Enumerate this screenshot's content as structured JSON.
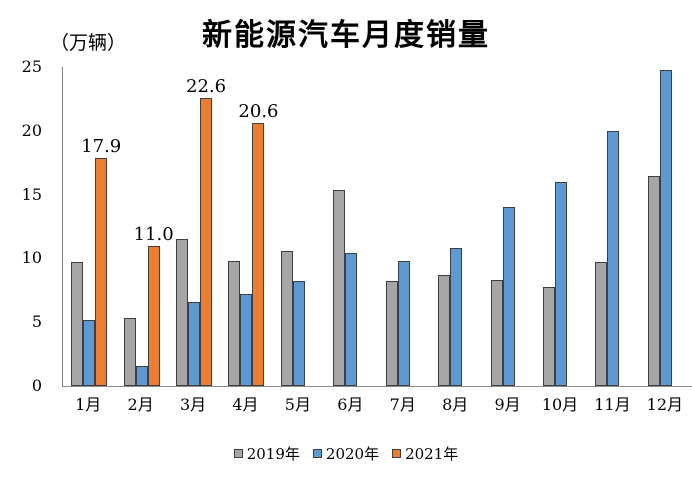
{
  "chart_data": {
    "type": "bar",
    "title": "新能源汽车月度销量",
    "ylabel": "（万辆）",
    "xlabel": "",
    "categories": [
      "1月",
      "2月",
      "3月",
      "4月",
      "5月",
      "6月",
      "7月",
      "8月",
      "9月",
      "10月",
      "11月",
      "12月"
    ],
    "series": [
      {
        "name": "2019年",
        "color": "#a6a6a6",
        "values": [
          9.7,
          5.3,
          11.5,
          9.8,
          10.6,
          15.4,
          8.2,
          8.7,
          8.3,
          7.8,
          9.7,
          16.5
        ]
      },
      {
        "name": "2020年",
        "color": "#5b9bd5",
        "values": [
          5.2,
          1.6,
          6.6,
          7.2,
          8.2,
          10.4,
          9.8,
          10.8,
          14.0,
          16.0,
          20.0,
          24.8
        ]
      },
      {
        "name": "2021年",
        "color": "#ed7d31",
        "values": [
          17.9,
          11.0,
          22.6,
          20.6,
          null,
          null,
          null,
          null,
          null,
          null,
          null,
          null
        ],
        "data_labels": [
          "17.9",
          "11.0",
          "22.6",
          "20.6"
        ]
      }
    ],
    "y_ticks": [
      0,
      5,
      10,
      15,
      20,
      25
    ],
    "ylim": [
      0,
      25
    ],
    "grid": false,
    "legend_position": "bottom",
    "bar_border_color": "#3f3f3f",
    "axis_color": "#808080"
  }
}
